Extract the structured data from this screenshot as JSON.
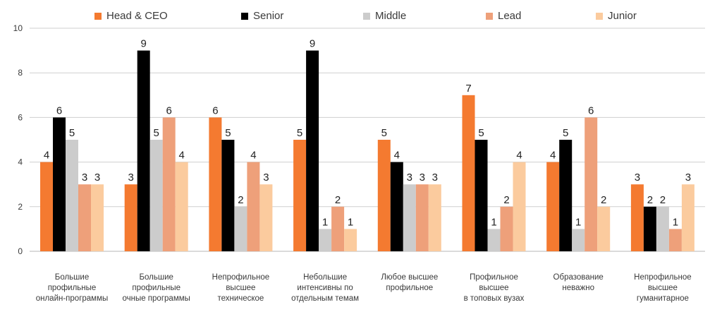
{
  "chart_data": {
    "type": "bar",
    "categories": [
      "Большие\nпрофильные\nонлайн-программы",
      "Большие\nпрофильные\nочные программы",
      "Непрофильное\nвысшее\nтехническое",
      "Небольшие\nинтенсивны по\nотдельным темам",
      "Любое высшее\nпрофильное",
      "Профильное\nвысшее\nв топовых вузах",
      "Образование\nневажно",
      "Непрофильное\nвысшее\nгуманитарное"
    ],
    "series": [
      {
        "name": "Head & CEO",
        "color": "#F47A30",
        "values": [
          4,
          3,
          6,
          5,
          5,
          7,
          4,
          3
        ]
      },
      {
        "name": "Senior",
        "color": "#000000",
        "values": [
          6,
          9,
          5,
          9,
          4,
          5,
          5,
          2
        ]
      },
      {
        "name": "Middle",
        "color": "#CCCCCC",
        "values": [
          5,
          5,
          2,
          1,
          3,
          1,
          1,
          2
        ]
      },
      {
        "name": "Lead",
        "color": "#EEA07A",
        "values": [
          3,
          6,
          4,
          2,
          3,
          2,
          6,
          1
        ]
      },
      {
        "name": "Junior",
        "color": "#FBCB9E",
        "values": [
          3,
          4,
          3,
          1,
          3,
          4,
          2,
          3
        ]
      }
    ],
    "ylim": [
      0,
      10
    ],
    "yticks": [
      "0",
      "2",
      "4",
      "6",
      "8",
      "10"
    ],
    "grid": true,
    "legend_position": "top",
    "data_labels": true
  }
}
